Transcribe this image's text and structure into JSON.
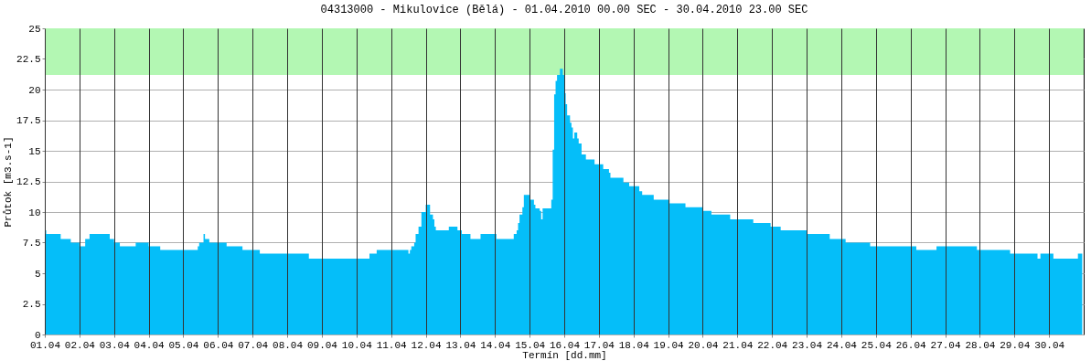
{
  "chart_data": {
    "type": "area",
    "title": "04313000  -  Mikulovice (Bělá)  -  01.04.2010 00.00 SEC - 30.04.2010 23.00 SEC",
    "xlabel": "Termín [dd.mm]",
    "ylabel": "Průtok [m3.s-1]",
    "x": [
      "2010-04-01T00:00",
      "2010-04-01T01:00",
      "2010-04-01T11:00",
      "2010-04-01T18:00",
      "2010-04-02T00:00",
      "2010-04-02T04:00",
      "2010-04-02T07:00",
      "2010-04-02T21:00",
      "2010-04-03T00:00",
      "2010-04-03T04:00",
      "2010-04-03T15:00",
      "2010-04-04T00:00",
      "2010-04-04T08:00",
      "2010-04-05T10:00",
      "2010-04-05T11:00",
      "2010-04-05T14:00",
      "2010-04-05T15:00",
      "2010-04-05T18:00",
      "2010-04-06T06:00",
      "2010-04-06T17:00",
      "2010-04-07T05:00",
      "2010-04-08T15:00",
      "2010-04-10T09:00",
      "2010-04-10T14:00",
      "2010-04-11T12:00",
      "2010-04-11T13:00",
      "2010-04-11T14:00",
      "2010-04-11T16:00",
      "2010-04-11T17:00",
      "2010-04-11T19:00",
      "2010-04-11T21:00",
      "2010-04-12T00:00",
      "2010-04-12T03:00",
      "2010-04-12T05:00",
      "2010-04-12T06:00",
      "2010-04-12T07:00",
      "2010-04-12T16:00",
      "2010-04-12T22:00",
      "2010-04-13T01:00",
      "2010-04-13T07:00",
      "2010-04-13T14:00",
      "2010-04-14T01:00",
      "2010-04-14T13:00",
      "2010-04-14T15:00",
      "2010-04-14T16:00",
      "2010-04-14T17:00",
      "2010-04-14T19:00",
      "2010-04-14T20:00",
      "2010-04-15T00:00",
      "2010-04-15T03:00",
      "2010-04-15T04:00",
      "2010-04-15T07:00",
      "2010-04-15T08:00",
      "2010-04-15T09:00",
      "2010-04-15T15:00",
      "2010-04-15T16:00",
      "2010-04-15T17:00",
      "2010-04-15T18:00",
      "2010-04-15T19:00",
      "2010-04-15T21:00",
      "2010-04-15T23:00",
      "2010-04-16T00:00",
      "2010-04-16T01:00",
      "2010-04-16T02:00",
      "2010-04-16T04:00",
      "2010-04-16T05:00",
      "2010-04-16T06:00",
      "2010-04-16T07:00",
      "2010-04-16T09:00",
      "2010-04-16T10:00",
      "2010-04-16T12:00",
      "2010-04-16T15:00",
      "2010-04-16T21:00",
      "2010-04-17T03:00",
      "2010-04-17T07:00",
      "2010-04-17T08:00",
      "2010-04-17T17:00",
      "2010-04-17T21:00",
      "2010-04-18T04:00",
      "2010-04-18T06:00",
      "2010-04-18T14:00",
      "2010-04-19T01:00",
      "2010-04-19T12:00",
      "2010-04-20T00:00",
      "2010-04-20T06:00",
      "2010-04-20T19:00",
      "2010-04-21T11:00",
      "2010-04-21T23:00",
      "2010-04-22T06:00",
      "2010-04-23T00:00",
      "2010-04-23T16:00",
      "2010-04-24T03:00",
      "2010-04-24T20:00",
      "2010-04-26T04:00",
      "2010-04-26T18:00",
      "2010-04-27T22:00",
      "2010-04-28T21:00",
      "2010-04-29T16:00",
      "2010-04-29T18:00",
      "2010-04-30T03:00",
      "2010-04-30T20:00",
      "2010-04-30T23:00"
    ],
    "series": [
      {
        "color": "#05bef9",
        "values": [
          8.5,
          8.2,
          7.8,
          7.5,
          7.2,
          7.8,
          8.2,
          7.8,
          7.5,
          7.2,
          7.5,
          7.2,
          6.9,
          7.2,
          7.5,
          8.2,
          7.8,
          7.5,
          7.2,
          6.9,
          6.6,
          6.2,
          6.6,
          6.9,
          6.6,
          6.9,
          7.2,
          7.5,
          8.2,
          8.8,
          10.0,
          10.6,
          9.8,
          9.4,
          8.8,
          8.5,
          8.8,
          8.5,
          8.2,
          7.8,
          8.2,
          7.8,
          8.2,
          8.5,
          9.1,
          9.8,
          10.4,
          11.4,
          11.0,
          10.6,
          10.3,
          10.1,
          9.4,
          10.3,
          11.0,
          15.1,
          19.6,
          20.7,
          21.2,
          21.7,
          21.2,
          19.7,
          18.8,
          17.9,
          17.3,
          16.9,
          16.0,
          16.5,
          16.0,
          15.6,
          14.7,
          14.3,
          13.9,
          13.5,
          13.2,
          12.8,
          12.4,
          12.1,
          11.7,
          11.4,
          11.0,
          10.7,
          10.4,
          10.1,
          9.8,
          9.4,
          9.1,
          8.8,
          8.5,
          8.2,
          7.8,
          7.5,
          7.2,
          6.9,
          7.2,
          6.9,
          6.6,
          6.2,
          6.6,
          6.2,
          6.6,
          6.6
        ]
      }
    ],
    "xlim": [
      "2010-04-01T00:00",
      "2010-05-01T00:00"
    ],
    "xticks": [
      {
        "value": "2010-04-01",
        "label": "01.04"
      },
      {
        "value": "2010-04-02",
        "label": "02.04"
      },
      {
        "value": "2010-04-03",
        "label": "03.04"
      },
      {
        "value": "2010-04-04",
        "label": "04.04"
      },
      {
        "value": "2010-04-05",
        "label": "05.04"
      },
      {
        "value": "2010-04-06",
        "label": "06.04"
      },
      {
        "value": "2010-04-07",
        "label": "07.04"
      },
      {
        "value": "2010-04-08",
        "label": "08.04"
      },
      {
        "value": "2010-04-09",
        "label": "09.04"
      },
      {
        "value": "2010-04-10",
        "label": "10.04"
      },
      {
        "value": "2010-04-11",
        "label": "11.04"
      },
      {
        "value": "2010-04-12",
        "label": "12.04"
      },
      {
        "value": "2010-04-13",
        "label": "13.04"
      },
      {
        "value": "2010-04-14",
        "label": "14.04"
      },
      {
        "value": "2010-04-15",
        "label": "15.04"
      },
      {
        "value": "2010-04-16",
        "label": "16.04"
      },
      {
        "value": "2010-04-17",
        "label": "17.04"
      },
      {
        "value": "2010-04-18",
        "label": "18.04"
      },
      {
        "value": "2010-04-19",
        "label": "19.04"
      },
      {
        "value": "2010-04-20",
        "label": "20.04"
      },
      {
        "value": "2010-04-21",
        "label": "21.04"
      },
      {
        "value": "2010-04-22",
        "label": "22.04"
      },
      {
        "value": "2010-04-23",
        "label": "23.04"
      },
      {
        "value": "2010-04-24",
        "label": "24.04"
      },
      {
        "value": "2010-04-25",
        "label": "25.04"
      },
      {
        "value": "2010-04-26",
        "label": "26.04"
      },
      {
        "value": "2010-04-27",
        "label": "27.04"
      },
      {
        "value": "2010-04-28",
        "label": "28.04"
      },
      {
        "value": "2010-04-29",
        "label": "29.04"
      },
      {
        "value": "2010-04-30",
        "label": "30.04"
      }
    ],
    "ylim": [
      0,
      25
    ],
    "yticks": [
      0,
      2.5,
      5,
      7.5,
      10,
      12.5,
      15,
      17.5,
      20,
      22.5,
      25
    ],
    "grid": true,
    "bands": [
      {
        "axis": "y",
        "from": 21.2,
        "to": 25,
        "color": "#b3f7b3"
      }
    ]
  }
}
